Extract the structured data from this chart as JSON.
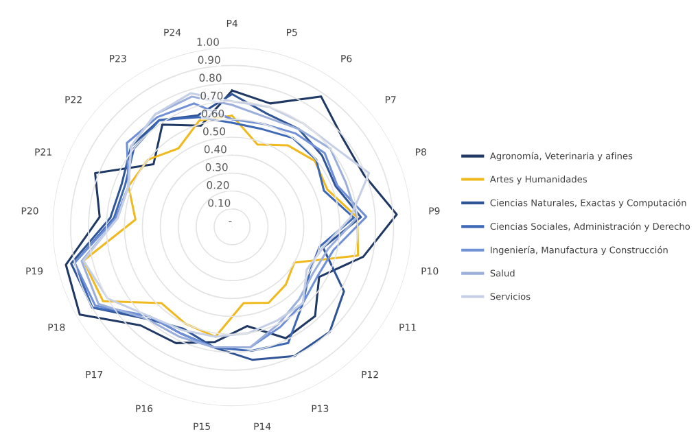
{
  "chart_data": {
    "type": "radar",
    "categories": [
      "P4",
      "P5",
      "P6",
      "P7",
      "P8",
      "P9",
      "P10",
      "P11",
      "P12",
      "P13",
      "P14",
      "P15",
      "P16",
      "P17",
      "P18",
      "P19",
      "P20",
      "P21",
      "P22",
      "P23",
      "P24"
    ],
    "ylim": [
      0,
      1
    ],
    "yticks": [
      {
        "value": 0,
        "label": "-"
      },
      {
        "value": 0.1,
        "label": "0.10"
      },
      {
        "value": 0.2,
        "label": "0.20"
      },
      {
        "value": 0.3,
        "label": "0.30"
      },
      {
        "value": 0.4,
        "label": "0.40"
      },
      {
        "value": 0.5,
        "label": "0.50"
      },
      {
        "value": 0.6,
        "label": "0.60"
      },
      {
        "value": 0.7,
        "label": "0.70"
      },
      {
        "value": 0.8,
        "label": "0.80"
      },
      {
        "value": 0.9,
        "label": "0.90"
      },
      {
        "value": 1,
        "label": "1.00"
      }
    ],
    "grid": "y",
    "legend": "right",
    "series": [
      {
        "name": "Agronomía, Veterinaria y afines",
        "color": "#1f3864",
        "values": [
          0.76,
          0.72,
          0.88,
          0.79,
          0.79,
          0.92,
          0.75,
          0.56,
          0.68,
          0.69,
          0.56,
          0.65,
          0.72,
          0.75,
          0.98,
          0.95,
          0.74,
          0.82,
          0.56,
          0.69,
          0.59
        ]
      },
      {
        "name": "Artes y Humanidades",
        "color": "#f0b91e",
        "values": [
          0.62,
          0.48,
          0.55,
          0.59,
          0.57,
          0.7,
          0.72,
          0.4,
          0.44,
          0.47,
          0.43,
          0.62,
          0.6,
          0.58,
          0.83,
          0.85,
          0.54,
          0.62,
          0.6,
          0.53,
          0.62
        ]
      },
      {
        "name": "Ciencias Naturales, Exactas y Computación",
        "color": "#2f5597",
        "values": [
          0.74,
          0.66,
          0.66,
          0.64,
          0.62,
          0.72,
          0.52,
          0.72,
          0.8,
          0.8,
          0.75,
          0.68,
          0.63,
          0.7,
          0.9,
          0.92,
          0.68,
          0.66,
          0.72,
          0.72,
          0.65
        ]
      },
      {
        "name": "Ciencias Sociales, Administración y Derecho",
        "color": "#3d68b5",
        "values": [
          0.58,
          0.57,
          0.6,
          0.6,
          0.55,
          0.68,
          0.5,
          0.5,
          0.58,
          0.72,
          0.7,
          0.68,
          0.66,
          0.68,
          0.9,
          0.9,
          0.66,
          0.64,
          0.7,
          0.72,
          0.64
        ]
      },
      {
        "name": "Ingeniería, Manufactura y Construcción",
        "color": "#6f8fd6",
        "values": [
          0.6,
          0.6,
          0.63,
          0.66,
          0.63,
          0.75,
          0.58,
          0.55,
          0.58,
          0.62,
          0.68,
          0.68,
          0.66,
          0.68,
          0.88,
          0.9,
          0.65,
          0.62,
          0.75,
          0.74,
          0.72
        ]
      },
      {
        "name": "Salud",
        "color": "#9aafdb",
        "values": [
          0.68,
          0.64,
          0.66,
          0.7,
          0.68,
          0.7,
          0.55,
          0.52,
          0.55,
          0.6,
          0.68,
          0.68,
          0.68,
          0.7,
          0.86,
          0.86,
          0.64,
          0.62,
          0.72,
          0.76,
          0.76
        ]
      },
      {
        "name": "Servicios",
        "color": "#c5d0e6",
        "values": [
          0.7,
          0.7,
          0.7,
          0.72,
          0.82,
          0.66,
          0.52,
          0.48,
          0.58,
          0.58,
          0.6,
          0.62,
          0.64,
          0.68,
          0.8,
          0.85,
          0.64,
          0.62,
          0.72,
          0.76,
          0.78
        ]
      }
    ]
  }
}
